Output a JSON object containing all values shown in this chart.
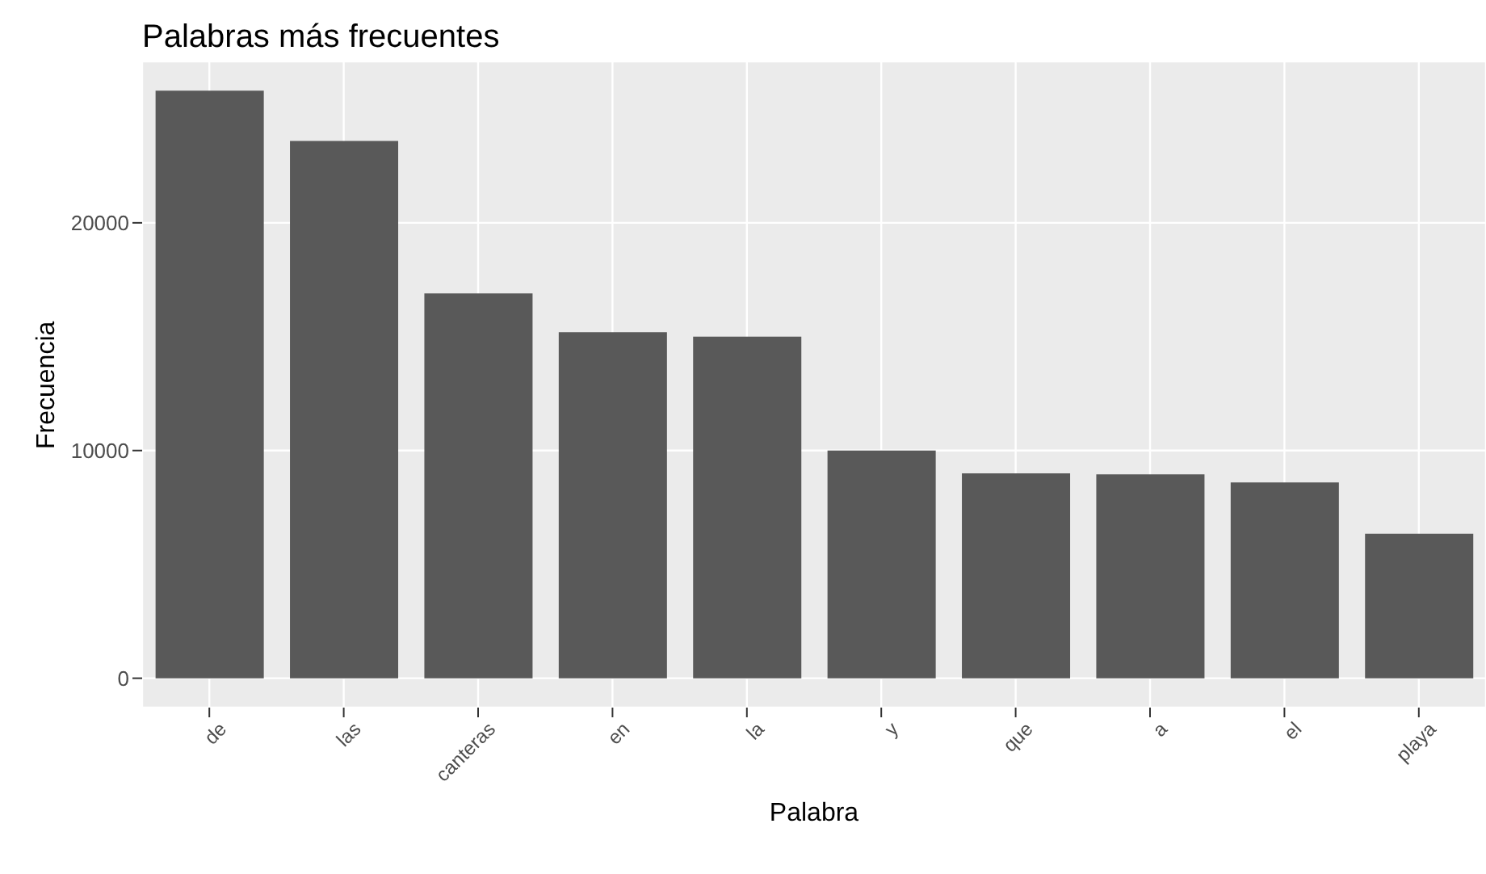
{
  "chart_data": {
    "type": "bar",
    "title": "Palabras más frecuentes",
    "xlabel": "Palabra",
    "ylabel": "Frecuencia",
    "categories": [
      "de",
      "las",
      "canteras",
      "en",
      "la",
      "y",
      "que",
      "a",
      "el",
      "playa"
    ],
    "values": [
      25800,
      23600,
      16900,
      15200,
      15000,
      10000,
      9000,
      8950,
      8600,
      6350
    ],
    "color": "#595959",
    "ylim": [
      -1290,
      27090
    ],
    "yticks": [
      0,
      10000,
      20000
    ],
    "grid": true
  }
}
